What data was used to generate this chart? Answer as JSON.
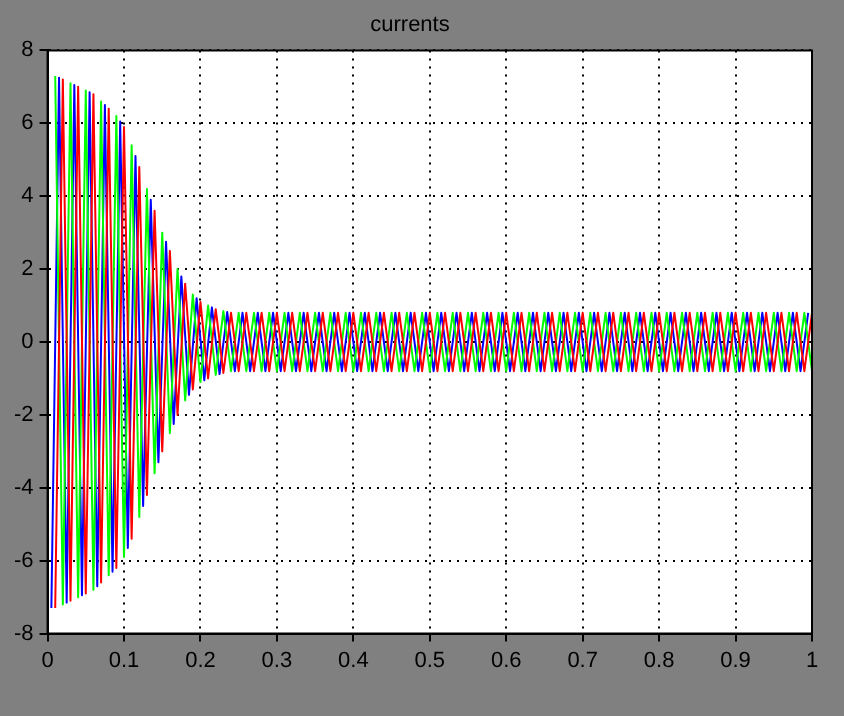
{
  "chart_data": {
    "type": "line",
    "title": "currents",
    "legend": false,
    "grid": true,
    "marker": "none",
    "line_style": "solid",
    "xlim": [
      0,
      1
    ],
    "xticks": [
      0,
      0.1,
      0.2,
      0.3,
      0.4,
      0.5,
      0.6,
      0.7,
      0.8,
      0.9,
      1
    ],
    "ylim": [
      -8,
      8
    ],
    "yticks": [
      -8,
      -6,
      -4,
      -2,
      0,
      2,
      4,
      6,
      8
    ],
    "x": [
      0.01,
      0.02,
      0.03,
      0.04,
      0.05,
      0.06,
      0.07,
      0.08,
      0.09,
      0.1,
      0.11,
      0.12,
      0.13,
      0.14,
      0.15,
      0.16,
      0.17,
      0.18,
      0.19,
      0.2,
      0.21,
      0.22,
      0.23,
      0.24,
      0.25,
      0.26,
      0.27,
      0.28,
      0.29,
      0.3,
      0.31,
      0.32,
      0.33,
      0.34,
      0.35,
      0.36,
      0.37,
      0.38,
      0.39,
      0.4,
      0.41,
      0.42,
      0.43,
      0.44,
      0.45,
      0.46,
      0.47,
      0.48,
      0.49,
      0.5,
      0.51,
      0.52,
      0.53,
      0.54,
      0.55,
      0.56,
      0.57,
      0.58,
      0.59,
      0.6,
      0.61,
      0.62,
      0.63,
      0.64,
      0.65,
      0.66,
      0.67,
      0.68,
      0.69,
      0.7,
      0.71,
      0.72,
      0.73,
      0.74,
      0.75,
      0.76,
      0.77,
      0.78,
      0.79,
      0.8,
      0.81,
      0.82,
      0.83,
      0.84,
      0.85,
      0.86,
      0.87,
      0.88,
      0.89,
      0.9,
      0.91,
      0.92,
      0.93,
      0.94,
      0.95,
      0.96,
      0.97,
      0.98,
      0.99,
      1
    ],
    "series": [
      {
        "color": "#ff0000",
        "values": [
          -7.3,
          7.2,
          -7.1,
          7.0,
          -6.9,
          6.8,
          -6.6,
          6.4,
          -6.2,
          5.9,
          -5.4,
          4.8,
          -4.2,
          3.6,
          -3.0,
          2.5,
          -2.0,
          1.6,
          -1.3,
          1.1,
          -1.0,
          0.9,
          -0.85,
          0.8,
          -0.8,
          0.8,
          -0.8,
          0.8,
          -0.8,
          0.8,
          -0.8,
          0.8,
          -0.8,
          0.8,
          -0.8,
          0.8,
          -0.8,
          0.8,
          -0.8,
          0.8,
          -0.8,
          0.8,
          -0.8,
          0.8,
          -0.8,
          0.8,
          -0.8,
          0.8,
          -0.8,
          0.8,
          -0.8,
          0.8,
          -0.8,
          0.8,
          -0.8,
          0.8,
          -0.8,
          0.8,
          -0.8,
          0.8,
          -0.8,
          0.8,
          -0.8,
          0.8,
          -0.8,
          0.8,
          -0.8,
          0.8,
          -0.8,
          0.8,
          -0.8,
          0.8,
          -0.8,
          0.8,
          -0.8,
          0.8,
          -0.8,
          0.8,
          -0.8,
          0.8,
          -0.8,
          0.8,
          -0.8,
          0.8,
          -0.8,
          0.8,
          -0.8,
          0.8,
          -0.8,
          0.8,
          -0.8,
          0.8,
          -0.8,
          0.8,
          -0.8,
          0.8,
          -0.8,
          0.8,
          -0.8,
          0.8
        ]
      },
      {
        "color": "#00ff00",
        "values": [
          7.3,
          -7.2,
          7.1,
          -7.0,
          6.9,
          -6.8,
          6.6,
          -6.4,
          6.2,
          -5.9,
          5.4,
          -4.8,
          4.2,
          -3.6,
          3.0,
          -2.5,
          2.0,
          -1.6,
          1.3,
          -1.1,
          1.0,
          -0.9,
          0.85,
          -0.8,
          0.8,
          -0.8,
          0.8,
          -0.8,
          0.8,
          -0.8,
          0.8,
          -0.8,
          0.8,
          -0.8,
          0.8,
          -0.8,
          0.8,
          -0.8,
          0.8,
          -0.8,
          0.8,
          -0.8,
          0.8,
          -0.8,
          0.8,
          -0.8,
          0.8,
          -0.8,
          0.8,
          -0.8,
          0.8,
          -0.8,
          0.8,
          -0.8,
          0.8,
          -0.8,
          0.8,
          -0.8,
          0.8,
          -0.8,
          0.8,
          -0.8,
          0.8,
          -0.8,
          0.8,
          -0.8,
          0.8,
          -0.8,
          0.8,
          -0.8,
          0.8,
          -0.8,
          0.8,
          -0.8,
          0.8,
          -0.8,
          0.8,
          -0.8,
          0.8,
          -0.8,
          0.8,
          -0.8,
          0.8,
          -0.8,
          0.8,
          -0.8,
          0.8,
          -0.8,
          0.8,
          -0.8,
          0.8,
          -0.8,
          0.8,
          -0.8,
          0.8,
          -0.8,
          0.8,
          -0.8,
          0.8,
          -0.8
        ]
      },
      {
        "color": "#0000ff",
        "x": [
          0.005,
          0.015,
          0.025,
          0.035,
          0.045,
          0.055,
          0.065,
          0.075,
          0.085,
          0.095,
          0.105,
          0.115,
          0.125,
          0.135,
          0.145,
          0.155,
          0.165,
          0.175,
          0.185,
          0.195,
          0.205,
          0.215,
          0.225,
          0.235,
          0.245,
          0.255,
          0.265,
          0.275,
          0.285,
          0.295,
          0.305,
          0.315,
          0.325,
          0.335,
          0.345,
          0.355,
          0.365,
          0.375,
          0.385,
          0.395,
          0.405,
          0.415,
          0.425,
          0.435,
          0.445,
          0.455,
          0.465,
          0.475,
          0.485,
          0.495,
          0.505,
          0.515,
          0.525,
          0.535,
          0.545,
          0.555,
          0.565,
          0.575,
          0.585,
          0.595,
          0.605,
          0.615,
          0.625,
          0.635,
          0.645,
          0.655,
          0.665,
          0.675,
          0.685,
          0.695,
          0.705,
          0.715,
          0.725,
          0.735,
          0.745,
          0.755,
          0.765,
          0.775,
          0.785,
          0.795,
          0.805,
          0.815,
          0.825,
          0.835,
          0.845,
          0.855,
          0.865,
          0.875,
          0.885,
          0.895,
          0.905,
          0.915,
          0.925,
          0.935,
          0.945,
          0.955,
          0.965,
          0.975,
          0.985,
          0.995
        ],
        "values": [
          -7.3,
          7.25,
          -7.15,
          7.05,
          -6.95,
          6.85,
          -6.7,
          6.5,
          -6.3,
          6.05,
          -5.65,
          5.1,
          -4.5,
          3.9,
          -3.3,
          2.75,
          -2.25,
          1.8,
          -1.45,
          1.2,
          -1.05,
          0.95,
          -0.88,
          0.82,
          -0.8,
          0.8,
          -0.8,
          0.8,
          -0.8,
          0.8,
          -0.8,
          0.8,
          -0.8,
          0.8,
          -0.8,
          0.8,
          -0.8,
          0.8,
          -0.8,
          0.8,
          -0.8,
          0.8,
          -0.8,
          0.8,
          -0.8,
          0.8,
          -0.8,
          0.8,
          -0.8,
          0.8,
          -0.8,
          0.8,
          -0.8,
          0.8,
          -0.8,
          0.8,
          -0.8,
          0.8,
          -0.8,
          0.8,
          -0.8,
          0.8,
          -0.8,
          0.8,
          -0.8,
          0.8,
          -0.8,
          0.8,
          -0.8,
          0.8,
          -0.8,
          0.8,
          -0.8,
          0.8,
          -0.8,
          0.8,
          -0.8,
          0.8,
          -0.8,
          0.8,
          -0.8,
          0.8,
          -0.8,
          0.8,
          -0.8,
          0.8,
          -0.8,
          0.8,
          -0.8,
          0.8,
          -0.8,
          0.8,
          -0.8,
          0.8,
          -0.8,
          0.8,
          -0.8,
          0.8,
          -0.8,
          0.8
        ]
      }
    ]
  }
}
